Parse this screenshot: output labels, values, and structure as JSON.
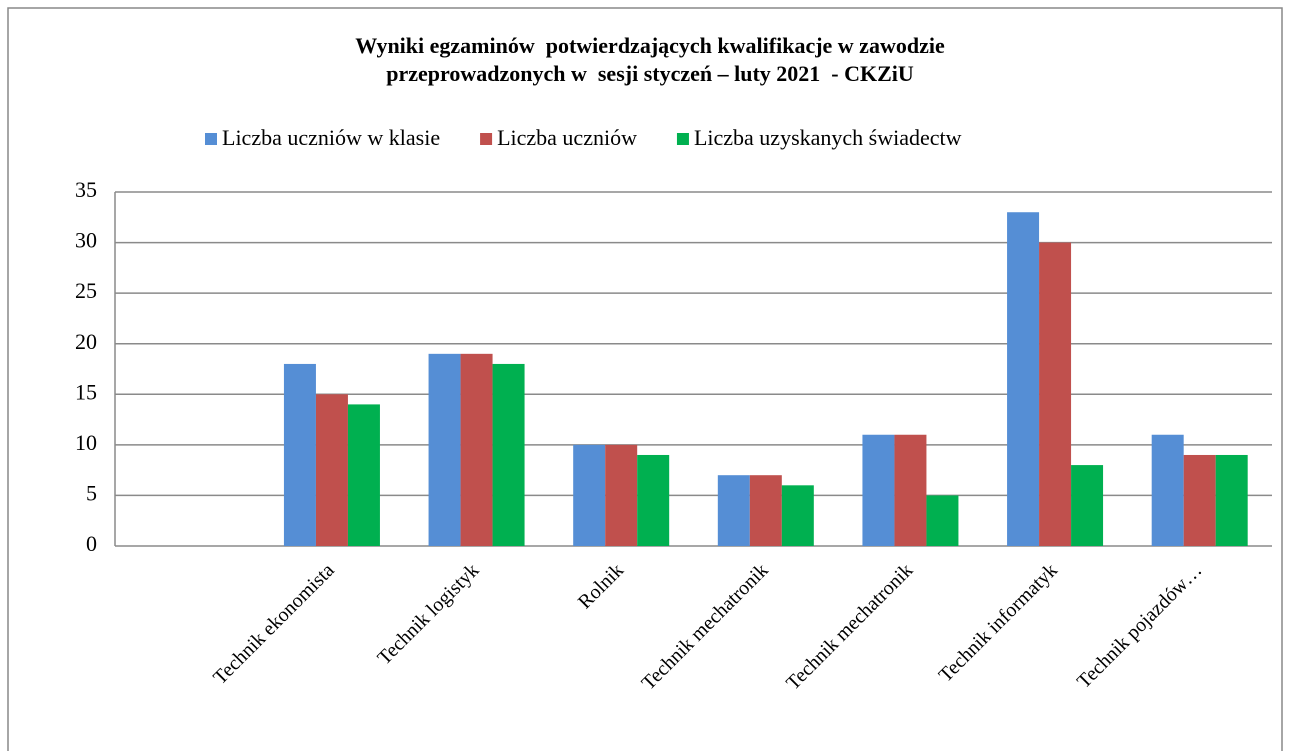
{
  "chart_data": {
    "type": "bar",
    "title": [
      "Wyniki egzaminów  potwierdzających kwalifikacje w zawodzie",
      "przeprowadzonych w  sesji styczeń – luty 2021  - CKZiU"
    ],
    "categories": [
      null,
      "Technik ekonomista",
      "Technik logistyk",
      "Rolnik",
      "Technik mechatronik",
      "Technik mechatronik",
      "Technik informatyk",
      "Technik pojazdów…"
    ],
    "series": [
      {
        "name": "Liczba uczniów w klasie",
        "color": "#558ed5",
        "values": [
          null,
          18,
          19,
          10,
          7,
          11,
          33,
          11
        ]
      },
      {
        "name": "Liczba uczniów",
        "color": "#c0504d",
        "values": [
          null,
          15,
          19,
          10,
          7,
          11,
          30,
          9
        ]
      },
      {
        "name": "Liczba uzyskanych świadectw",
        "color": "#00b050",
        "values": [
          null,
          14,
          18,
          9,
          6,
          5,
          8,
          9
        ]
      }
    ],
    "ylim": [
      0,
      35
    ],
    "yticks": [
      0,
      5,
      10,
      15,
      20,
      25,
      30,
      35
    ],
    "grid": true,
    "legend": "top"
  }
}
